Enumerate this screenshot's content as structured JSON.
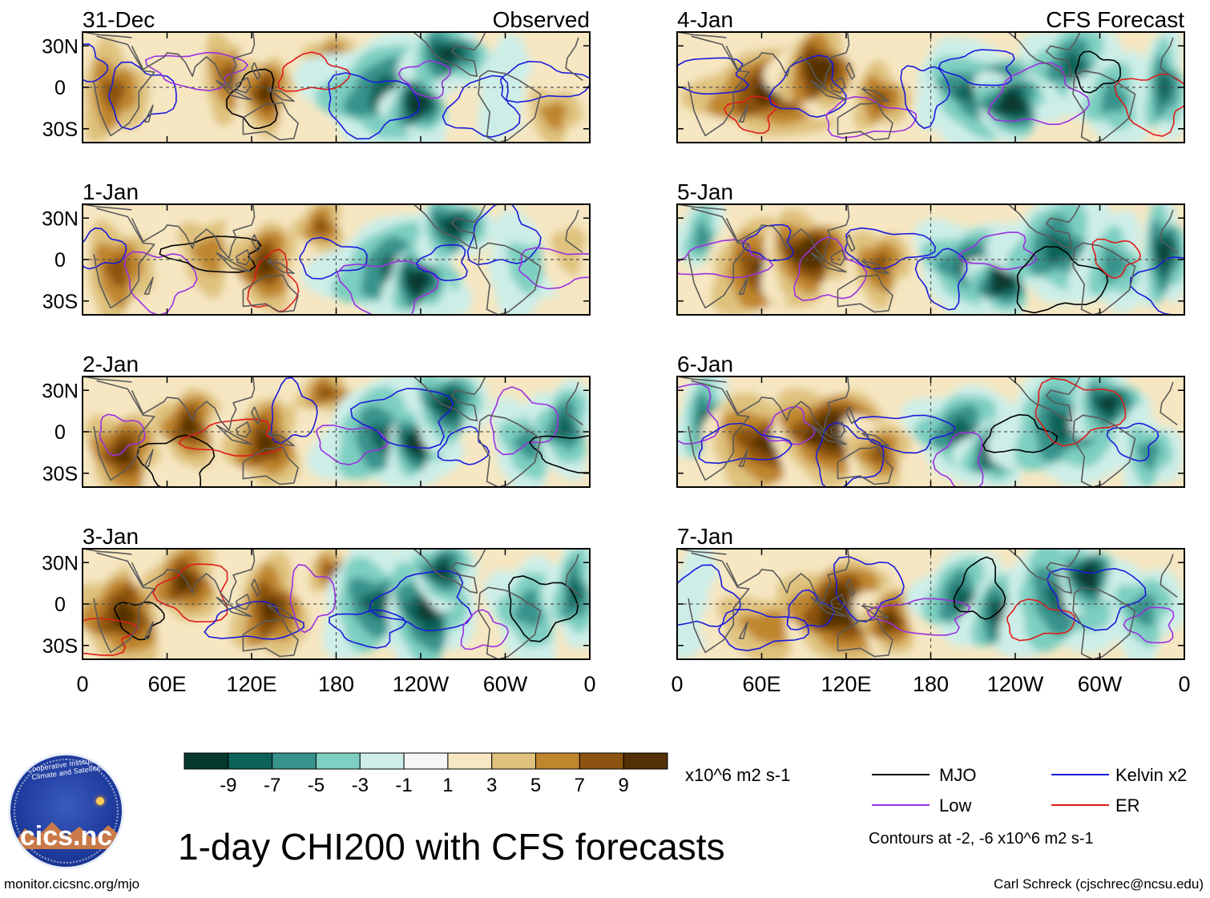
{
  "figure": {
    "title": "1-day CHI200 with CFS forecasts",
    "units": "x10^6 m2 s-1",
    "contour_note": "Contours at -2, -6 x10^6 m2 s-1",
    "website": "monitor.cicsnc.org/mjo",
    "author": "Carl Schreck (cjschrec@ncsu.edu)",
    "logo": {
      "arc_text": "Cooperative Institute for Climate and Satellites",
      "name": "cics.nc"
    },
    "column_headers": {
      "left": "Observed",
      "right": "CFS Forecast"
    }
  },
  "axes": {
    "lat_ticks": [
      "30N",
      "0",
      "30S"
    ],
    "lon_ticks": [
      "0",
      "60E",
      "120E",
      "180",
      "120W",
      "60W",
      "0"
    ]
  },
  "colors": {
    "scale": [
      "#07382d",
      "#0c6258",
      "#37938c",
      "#7dcfc1",
      "#cdeee8",
      "#f5f5f5",
      "#f6e7c2",
      "#dfc27d",
      "#c0862e",
      "#8d5310",
      "#543005"
    ],
    "scale_labels": [
      "-9",
      "-7",
      "-5",
      "-3",
      "-1",
      "1",
      "3",
      "5",
      "7",
      "9"
    ],
    "mjo": "#000000",
    "kelvin": "#1a1adb",
    "low": "#9b30e0",
    "er": "#e01a1a",
    "land": "#5a5a5a"
  },
  "legend": {
    "mjo": "MJO",
    "kelvin": "Kelvin x2",
    "low": "Low",
    "er": "ER"
  },
  "panels": [
    {
      "label": "31-Dec",
      "side": "left",
      "row": 0
    },
    {
      "label": "1-Jan",
      "side": "left",
      "row": 1
    },
    {
      "label": "2-Jan",
      "side": "left",
      "row": 2
    },
    {
      "label": "3-Jan",
      "side": "left",
      "row": 3
    },
    {
      "label": "4-Jan",
      "side": "right",
      "row": 0
    },
    {
      "label": "5-Jan",
      "side": "right",
      "row": 1
    },
    {
      "label": "6-Jan",
      "side": "right",
      "row": 2
    },
    {
      "label": "7-Jan",
      "side": "right",
      "row": 3
    }
  ]
}
